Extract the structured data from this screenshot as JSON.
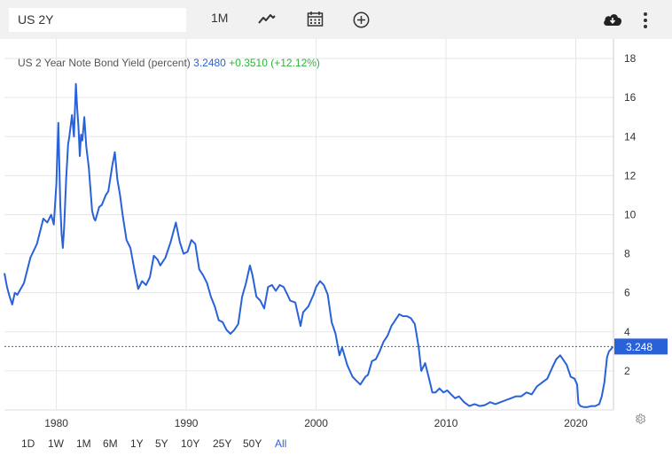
{
  "toolbar": {
    "symbol_value": "US 2Y",
    "interval_label": "1M",
    "chart_type_icon": "line-chart-icon",
    "calendar_icon": "calendar-icon",
    "add_indicator_icon": "plus-circle-icon",
    "download_icon": "cloud-download-icon",
    "menu_icon": "more-vertical-icon"
  },
  "header": {
    "series_name": "US 2 Year Note Bond Yield (percent)",
    "last_value": "3.2480",
    "change": "+0.3510 (+12.12%)"
  },
  "colors": {
    "line": "#2962d8",
    "change_positive": "#2fb33e",
    "grid": "#e6e6e6",
    "toolbar_bg": "#f1f1f1"
  },
  "ranges": {
    "items": [
      "1D",
      "1W",
      "1M",
      "6M",
      "1Y",
      "5Y",
      "10Y",
      "25Y",
      "50Y",
      "All"
    ],
    "active": "All"
  },
  "settings_icon": "gear-icon",
  "chart_data": {
    "type": "line",
    "title": "US 2 Year Note Bond Yield (percent)",
    "xlabel": "",
    "ylabel": "",
    "xlim": [
      1976,
      2022.9
    ],
    "ylim": [
      0,
      19
    ],
    "x_ticks": [
      "1980",
      "1990",
      "2000",
      "2010",
      "2020"
    ],
    "y_ticks": [
      "2",
      "4",
      "6",
      "8",
      "10",
      "12",
      "14",
      "16",
      "18"
    ],
    "grid": true,
    "last_value_label": "3.248",
    "series": [
      {
        "x": [
          1976.0,
          1976.2,
          1976.4,
          1976.6,
          1976.8,
          1977.0,
          1977.5,
          1978.0,
          1978.5,
          1979.0,
          1979.3,
          1979.6,
          1979.8,
          1980.0,
          1980.15,
          1980.3,
          1980.4,
          1980.5,
          1980.6,
          1980.75,
          1980.9,
          1981.0,
          1981.2,
          1981.35,
          1981.5,
          1981.6,
          1981.7,
          1981.8,
          1981.9,
          1982.0,
          1982.15,
          1982.3,
          1982.5,
          1982.6,
          1982.75,
          1982.9,
          1983.0,
          1983.3,
          1983.5,
          1983.8,
          1984.0,
          1984.3,
          1984.5,
          1984.7,
          1984.9,
          1985.1,
          1985.4,
          1985.7,
          1986.0,
          1986.3,
          1986.6,
          1986.9,
          1987.2,
          1987.5,
          1987.8,
          1988.0,
          1988.4,
          1988.8,
          1989.2,
          1989.5,
          1989.8,
          1990.1,
          1990.4,
          1990.7,
          1991.0,
          1991.3,
          1991.6,
          1991.9,
          1992.2,
          1992.5,
          1992.8,
          1993.1,
          1993.4,
          1993.7,
          1994.0,
          1994.3,
          1994.6,
          1994.9,
          1995.1,
          1995.4,
          1995.7,
          1996.0,
          1996.3,
          1996.6,
          1996.9,
          1997.2,
          1997.5,
          1997.8,
          1998.0,
          1998.4,
          1998.8,
          1999.0,
          1999.4,
          1999.8,
          2000.0,
          2000.3,
          2000.6,
          2000.9,
          2001.2,
          2001.5,
          2001.8,
          2002.0,
          2002.4,
          2002.8,
          2003.1,
          2003.4,
          2003.8,
          2004.0,
          2004.3,
          2004.6,
          2004.9,
          2005.2,
          2005.5,
          2005.8,
          2006.1,
          2006.4,
          2006.7,
          2007.0,
          2007.3,
          2007.6,
          2007.9,
          2008.1,
          2008.4,
          2008.7,
          2008.95,
          2009.2,
          2009.5,
          2009.8,
          2010.1,
          2010.4,
          2010.7,
          2011.0,
          2011.4,
          2011.8,
          2012.2,
          2012.6,
          2013.0,
          2013.4,
          2013.8,
          2014.2,
          2014.6,
          2015.0,
          2015.4,
          2015.8,
          2016.2,
          2016.6,
          2017.0,
          2017.4,
          2017.8,
          2018.2,
          2018.5,
          2018.8,
          2019.0,
          2019.3,
          2019.6,
          2019.9,
          2020.1,
          2020.2,
          2020.35,
          2020.6,
          2020.9,
          2021.2,
          2021.5,
          2021.8,
          2022.0,
          2022.2,
          2022.4,
          2022.55,
          2022.7,
          2022.85
        ],
        "values": [
          7.0,
          6.3,
          5.8,
          5.4,
          6.0,
          5.9,
          6.5,
          7.8,
          8.5,
          9.8,
          9.6,
          10.0,
          9.5,
          11.6,
          14.7,
          10.5,
          9.0,
          8.3,
          9.4,
          11.8,
          13.6,
          14.0,
          15.1,
          14.0,
          16.7,
          15.5,
          14.5,
          13.0,
          14.1,
          13.8,
          15.0,
          13.5,
          12.4,
          11.5,
          10.2,
          9.8,
          9.7,
          10.4,
          10.5,
          11.0,
          11.2,
          12.5,
          13.2,
          11.8,
          11.0,
          10.0,
          8.7,
          8.3,
          7.2,
          6.2,
          6.6,
          6.4,
          6.8,
          7.9,
          7.7,
          7.4,
          7.8,
          8.6,
          9.6,
          8.6,
          8.0,
          8.1,
          8.7,
          8.5,
          7.2,
          6.9,
          6.5,
          5.8,
          5.3,
          4.6,
          4.5,
          4.1,
          3.9,
          4.1,
          4.4,
          5.8,
          6.5,
          7.4,
          6.9,
          5.8,
          5.6,
          5.2,
          6.3,
          6.4,
          6.1,
          6.4,
          6.3,
          5.9,
          5.6,
          5.5,
          4.3,
          5.0,
          5.3,
          5.9,
          6.3,
          6.6,
          6.4,
          5.9,
          4.5,
          3.9,
          2.8,
          3.2,
          2.3,
          1.7,
          1.5,
          1.3,
          1.7,
          1.8,
          2.5,
          2.6,
          3.0,
          3.5,
          3.8,
          4.3,
          4.6,
          4.9,
          4.8,
          4.8,
          4.7,
          4.4,
          3.2,
          2.0,
          2.4,
          1.6,
          0.9,
          0.9,
          1.1,
          0.9,
          1.0,
          0.8,
          0.6,
          0.7,
          0.4,
          0.2,
          0.3,
          0.2,
          0.25,
          0.4,
          0.3,
          0.4,
          0.5,
          0.6,
          0.7,
          0.7,
          0.9,
          0.8,
          1.2,
          1.4,
          1.6,
          2.2,
          2.6,
          2.8,
          2.6,
          2.3,
          1.7,
          1.6,
          1.3,
          0.35,
          0.2,
          0.15,
          0.15,
          0.2,
          0.2,
          0.3,
          0.7,
          1.4,
          2.7,
          3.0,
          3.1,
          3.248
        ]
      }
    ]
  }
}
